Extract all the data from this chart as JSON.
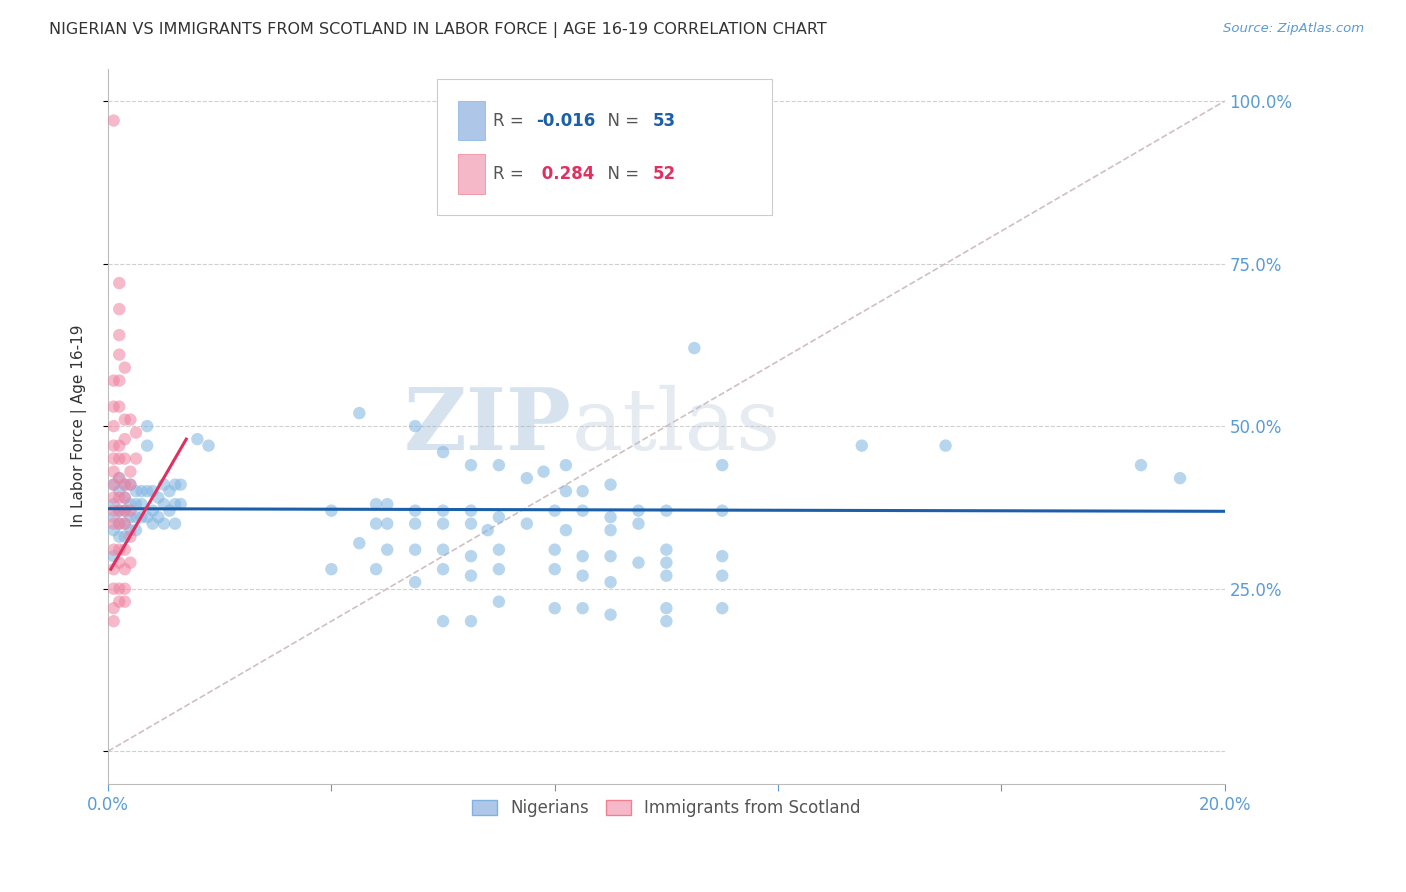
{
  "title": "NIGERIAN VS IMMIGRANTS FROM SCOTLAND IN LABOR FORCE | AGE 16-19 CORRELATION CHART",
  "source": "Source: ZipAtlas.com",
  "ylabel": "In Labor Force | Age 16-19",
  "xlim": [
    0.0,
    0.2
  ],
  "ylim": [
    -0.05,
    1.05
  ],
  "yticks": [
    0.0,
    0.25,
    0.5,
    0.75,
    1.0
  ],
  "ytick_labels": [
    "",
    "25.0%",
    "50.0%",
    "75.0%",
    "100.0%"
  ],
  "xticks": [
    0.0,
    0.04,
    0.08,
    0.12,
    0.16,
    0.2
  ],
  "xtick_labels": [
    "0.0%",
    "",
    "",
    "",
    "",
    "20.0%"
  ],
  "watermark_zip": "ZIP",
  "watermark_atlas": "atlas",
  "blue_color": "#7eb3e0",
  "pink_color": "#f080a0",
  "diag_line_color": "#d0c0c0",
  "nigerian_points": [
    [
      0.001,
      0.41
    ],
    [
      0.001,
      0.38
    ],
    [
      0.001,
      0.36
    ],
    [
      0.001,
      0.34
    ],
    [
      0.001,
      0.3
    ],
    [
      0.002,
      0.42
    ],
    [
      0.002,
      0.4
    ],
    [
      0.002,
      0.37
    ],
    [
      0.002,
      0.35
    ],
    [
      0.002,
      0.33
    ],
    [
      0.003,
      0.41
    ],
    [
      0.003,
      0.39
    ],
    [
      0.003,
      0.37
    ],
    [
      0.003,
      0.35
    ],
    [
      0.003,
      0.33
    ],
    [
      0.004,
      0.41
    ],
    [
      0.004,
      0.38
    ],
    [
      0.004,
      0.36
    ],
    [
      0.004,
      0.34
    ],
    [
      0.005,
      0.4
    ],
    [
      0.005,
      0.38
    ],
    [
      0.005,
      0.36
    ],
    [
      0.005,
      0.34
    ],
    [
      0.006,
      0.4
    ],
    [
      0.006,
      0.38
    ],
    [
      0.006,
      0.36
    ],
    [
      0.007,
      0.5
    ],
    [
      0.007,
      0.47
    ],
    [
      0.007,
      0.4
    ],
    [
      0.007,
      0.36
    ],
    [
      0.008,
      0.4
    ],
    [
      0.008,
      0.37
    ],
    [
      0.008,
      0.35
    ],
    [
      0.009,
      0.39
    ],
    [
      0.009,
      0.36
    ],
    [
      0.01,
      0.41
    ],
    [
      0.01,
      0.38
    ],
    [
      0.01,
      0.35
    ],
    [
      0.011,
      0.4
    ],
    [
      0.011,
      0.37
    ],
    [
      0.012,
      0.41
    ],
    [
      0.012,
      0.38
    ],
    [
      0.012,
      0.35
    ],
    [
      0.013,
      0.41
    ],
    [
      0.013,
      0.38
    ],
    [
      0.016,
      0.48
    ],
    [
      0.018,
      0.47
    ],
    [
      0.045,
      0.52
    ],
    [
      0.055,
      0.5
    ],
    [
      0.06,
      0.46
    ],
    [
      0.065,
      0.44
    ],
    [
      0.07,
      0.44
    ],
    [
      0.075,
      0.42
    ],
    [
      0.078,
      0.43
    ],
    [
      0.082,
      0.44
    ],
    [
      0.082,
      0.4
    ],
    [
      0.085,
      0.4
    ],
    [
      0.09,
      0.41
    ],
    [
      0.048,
      0.38
    ],
    [
      0.05,
      0.38
    ],
    [
      0.055,
      0.37
    ],
    [
      0.06,
      0.37
    ],
    [
      0.065,
      0.37
    ],
    [
      0.07,
      0.36
    ],
    [
      0.08,
      0.37
    ],
    [
      0.085,
      0.37
    ],
    [
      0.09,
      0.36
    ],
    [
      0.095,
      0.37
    ],
    [
      0.1,
      0.37
    ],
    [
      0.11,
      0.44
    ],
    [
      0.11,
      0.37
    ],
    [
      0.04,
      0.37
    ],
    [
      0.048,
      0.35
    ],
    [
      0.05,
      0.35
    ],
    [
      0.055,
      0.35
    ],
    [
      0.06,
      0.35
    ],
    [
      0.065,
      0.35
    ],
    [
      0.068,
      0.34
    ],
    [
      0.075,
      0.35
    ],
    [
      0.082,
      0.34
    ],
    [
      0.09,
      0.34
    ],
    [
      0.095,
      0.35
    ],
    [
      0.045,
      0.32
    ],
    [
      0.05,
      0.31
    ],
    [
      0.055,
      0.31
    ],
    [
      0.06,
      0.31
    ],
    [
      0.065,
      0.3
    ],
    [
      0.07,
      0.31
    ],
    [
      0.08,
      0.31
    ],
    [
      0.085,
      0.3
    ],
    [
      0.09,
      0.3
    ],
    [
      0.1,
      0.31
    ],
    [
      0.11,
      0.3
    ],
    [
      0.04,
      0.28
    ],
    [
      0.048,
      0.28
    ],
    [
      0.06,
      0.28
    ],
    [
      0.065,
      0.27
    ],
    [
      0.055,
      0.26
    ],
    [
      0.07,
      0.28
    ],
    [
      0.08,
      0.28
    ],
    [
      0.085,
      0.27
    ],
    [
      0.09,
      0.26
    ],
    [
      0.1,
      0.27
    ],
    [
      0.11,
      0.27
    ],
    [
      0.105,
      0.62
    ],
    [
      0.135,
      0.47
    ],
    [
      0.15,
      0.47
    ],
    [
      0.185,
      0.44
    ],
    [
      0.192,
      0.42
    ],
    [
      0.07,
      0.23
    ],
    [
      0.08,
      0.22
    ],
    [
      0.085,
      0.22
    ],
    [
      0.09,
      0.21
    ],
    [
      0.1,
      0.22
    ],
    [
      0.11,
      0.22
    ],
    [
      0.06,
      0.2
    ],
    [
      0.065,
      0.2
    ],
    [
      0.1,
      0.2
    ],
    [
      0.095,
      0.29
    ],
    [
      0.1,
      0.29
    ]
  ],
  "scotland_points": [
    [
      0.001,
      0.97
    ],
    [
      0.002,
      0.72
    ],
    [
      0.002,
      0.68
    ],
    [
      0.002,
      0.64
    ],
    [
      0.002,
      0.61
    ],
    [
      0.001,
      0.57
    ],
    [
      0.001,
      0.53
    ],
    [
      0.001,
      0.5
    ],
    [
      0.001,
      0.47
    ],
    [
      0.001,
      0.45
    ],
    [
      0.001,
      0.43
    ],
    [
      0.001,
      0.41
    ],
    [
      0.001,
      0.39
    ],
    [
      0.001,
      0.37
    ],
    [
      0.001,
      0.35
    ],
    [
      0.001,
      0.31
    ],
    [
      0.001,
      0.28
    ],
    [
      0.001,
      0.25
    ],
    [
      0.001,
      0.22
    ],
    [
      0.001,
      0.2
    ],
    [
      0.002,
      0.57
    ],
    [
      0.002,
      0.53
    ],
    [
      0.002,
      0.47
    ],
    [
      0.002,
      0.45
    ],
    [
      0.002,
      0.42
    ],
    [
      0.002,
      0.39
    ],
    [
      0.002,
      0.37
    ],
    [
      0.002,
      0.35
    ],
    [
      0.002,
      0.31
    ],
    [
      0.002,
      0.29
    ],
    [
      0.002,
      0.25
    ],
    [
      0.002,
      0.23
    ],
    [
      0.003,
      0.59
    ],
    [
      0.003,
      0.51
    ],
    [
      0.003,
      0.48
    ],
    [
      0.003,
      0.45
    ],
    [
      0.003,
      0.41
    ],
    [
      0.003,
      0.39
    ],
    [
      0.003,
      0.37
    ],
    [
      0.003,
      0.35
    ],
    [
      0.003,
      0.31
    ],
    [
      0.003,
      0.28
    ],
    [
      0.003,
      0.25
    ],
    [
      0.003,
      0.23
    ],
    [
      0.004,
      0.51
    ],
    [
      0.004,
      0.43
    ],
    [
      0.004,
      0.41
    ],
    [
      0.004,
      0.37
    ],
    [
      0.004,
      0.33
    ],
    [
      0.004,
      0.29
    ],
    [
      0.005,
      0.49
    ],
    [
      0.005,
      0.45
    ]
  ],
  "blue_trend": [
    0.0,
    0.373,
    0.2,
    0.369
  ],
  "pink_trend": [
    0.0005,
    0.28,
    0.014,
    0.48
  ],
  "diag_line": [
    0.0,
    0.0,
    0.2,
    1.0
  ]
}
